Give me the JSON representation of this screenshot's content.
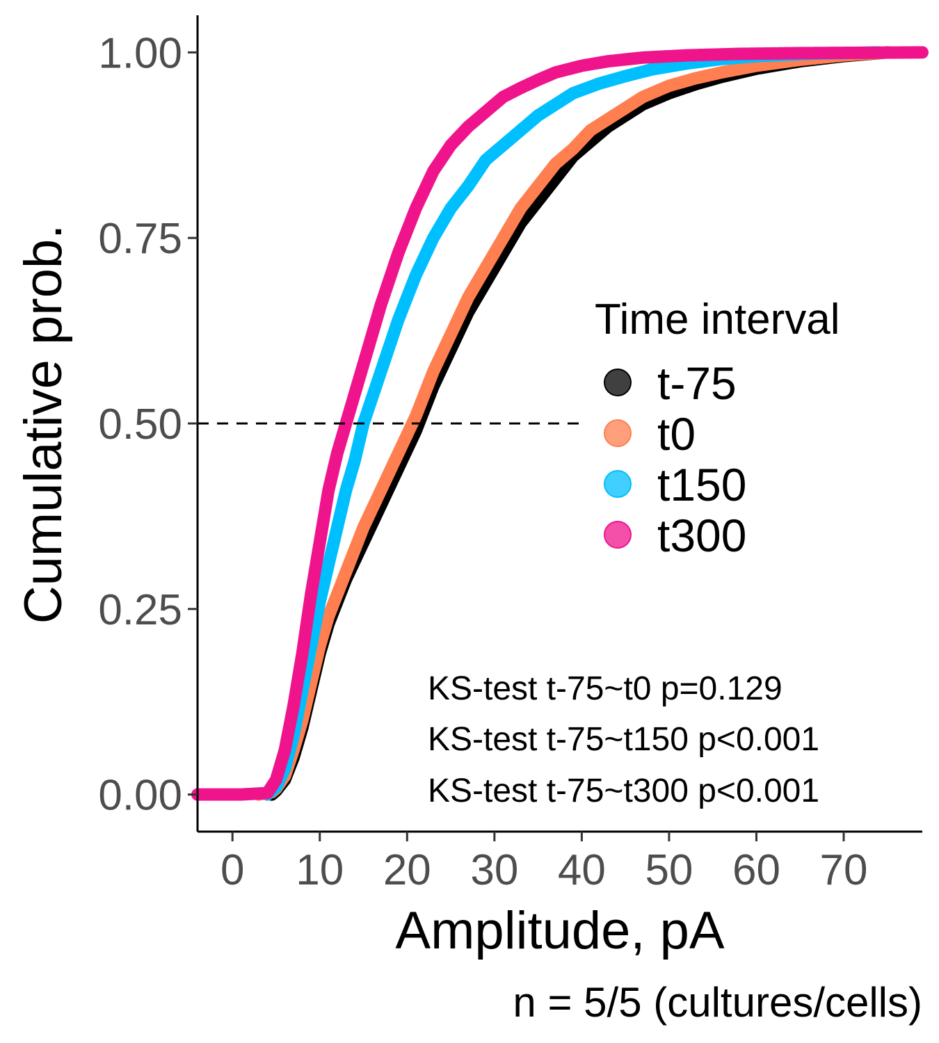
{
  "chart_data": {
    "type": "scatter",
    "subtype": "cumulative-distribution",
    "xlabel": "Amplitude, pA",
    "ylabel": "Cumulative prob.",
    "caption": "n = 5/5 (cultures/cells)",
    "xlim": [
      -4,
      79
    ],
    "ylim": [
      -0.05,
      1.05
    ],
    "x_ticks": [
      "0",
      "10",
      "20",
      "30",
      "40",
      "50",
      "60",
      "70"
    ],
    "x_tick_values": [
      0,
      10,
      20,
      30,
      40,
      50,
      60,
      70
    ],
    "y_ticks": [
      "0.00",
      "0.25",
      "0.50",
      "0.75",
      "1.00"
    ],
    "y_tick_values": [
      0,
      0.25,
      0.5,
      0.75,
      1.0
    ],
    "reference_line": {
      "y": 0.5,
      "x_from": -4,
      "x_to": 40,
      "style": "dashed"
    },
    "legend": {
      "title": "Time interval",
      "position": "right"
    },
    "annotations": [
      "KS-test t-75~t0 p=0.129",
      "KS-test t-75~t150 p<0.001",
      "KS-test t-75~t300 p<0.001"
    ],
    "series": [
      {
        "name": "t-75",
        "color": "#000000",
        "points": [
          [
            4.5,
            0
          ],
          [
            5,
            0.005
          ],
          [
            6,
            0.02
          ],
          [
            7,
            0.05
          ],
          [
            8,
            0.09
          ],
          [
            9,
            0.14
          ],
          [
            10,
            0.19
          ],
          [
            11,
            0.23
          ],
          [
            12,
            0.26
          ],
          [
            13,
            0.29
          ],
          [
            15,
            0.34
          ],
          [
            17,
            0.39
          ],
          [
            19,
            0.44
          ],
          [
            21,
            0.49
          ],
          [
            23,
            0.55
          ],
          [
            25,
            0.6
          ],
          [
            27,
            0.65
          ],
          [
            29,
            0.69
          ],
          [
            31,
            0.73
          ],
          [
            33,
            0.77
          ],
          [
            35,
            0.8
          ],
          [
            37,
            0.83
          ],
          [
            39,
            0.86
          ],
          [
            41,
            0.88
          ],
          [
            43,
            0.9
          ],
          [
            45,
            0.915
          ],
          [
            47,
            0.93
          ],
          [
            50,
            0.945
          ],
          [
            53,
            0.957
          ],
          [
            56,
            0.967
          ],
          [
            60,
            0.978
          ],
          [
            65,
            0.988
          ],
          [
            70,
            0.995
          ],
          [
            75,
            1.0
          ]
        ]
      },
      {
        "name": "t0",
        "color": "#ff7f50",
        "points": [
          [
            3,
            0
          ],
          [
            4.5,
            0.003
          ],
          [
            5,
            0.008
          ],
          [
            6,
            0.025
          ],
          [
            7,
            0.06
          ],
          [
            8,
            0.1
          ],
          [
            9,
            0.15
          ],
          [
            10,
            0.2
          ],
          [
            11,
            0.24
          ],
          [
            12,
            0.27
          ],
          [
            13,
            0.3
          ],
          [
            15,
            0.36
          ],
          [
            17,
            0.41
          ],
          [
            19,
            0.46
          ],
          [
            21,
            0.51
          ],
          [
            23,
            0.57
          ],
          [
            25,
            0.62
          ],
          [
            27,
            0.67
          ],
          [
            29,
            0.71
          ],
          [
            31,
            0.75
          ],
          [
            33,
            0.79
          ],
          [
            35,
            0.82
          ],
          [
            37,
            0.85
          ],
          [
            39,
            0.87
          ],
          [
            41,
            0.895
          ],
          [
            43,
            0.91
          ],
          [
            45,
            0.925
          ],
          [
            47,
            0.94
          ],
          [
            50,
            0.955
          ],
          [
            53,
            0.965
          ],
          [
            56,
            0.973
          ],
          [
            60,
            0.982
          ],
          [
            65,
            0.99
          ],
          [
            70,
            0.996
          ],
          [
            75,
            1.0
          ]
        ]
      },
      {
        "name": "t150",
        "color": "#00bfff",
        "points": [
          [
            4,
            0
          ],
          [
            5,
            0.01
          ],
          [
            6,
            0.035
          ],
          [
            7,
            0.08
          ],
          [
            8,
            0.14
          ],
          [
            9,
            0.2
          ],
          [
            10,
            0.26
          ],
          [
            11,
            0.31
          ],
          [
            12,
            0.36
          ],
          [
            13,
            0.41
          ],
          [
            14,
            0.45
          ],
          [
            15,
            0.5
          ],
          [
            17,
            0.57
          ],
          [
            19,
            0.64
          ],
          [
            21,
            0.7
          ],
          [
            23,
            0.75
          ],
          [
            25,
            0.79
          ],
          [
            27,
            0.82
          ],
          [
            29,
            0.855
          ],
          [
            31,
            0.875
          ],
          [
            33,
            0.895
          ],
          [
            35,
            0.915
          ],
          [
            37,
            0.93
          ],
          [
            39,
            0.945
          ],
          [
            42,
            0.958
          ],
          [
            45,
            0.968
          ],
          [
            48,
            0.977
          ],
          [
            52,
            0.985
          ],
          [
            56,
            0.991
          ],
          [
            60,
            0.995
          ],
          [
            66,
            0.998
          ],
          [
            74,
            1.0
          ]
        ]
      },
      {
        "name": "t300",
        "color": "#f0148c",
        "points": [
          [
            -4,
            0
          ],
          [
            1,
            0
          ],
          [
            4,
            0.002
          ],
          [
            5,
            0.02
          ],
          [
            6,
            0.06
          ],
          [
            7,
            0.12
          ],
          [
            8,
            0.19
          ],
          [
            9,
            0.27
          ],
          [
            10,
            0.34
          ],
          [
            11,
            0.41
          ],
          [
            12,
            0.46
          ],
          [
            13,
            0.5
          ],
          [
            14,
            0.54
          ],
          [
            15,
            0.58
          ],
          [
            17,
            0.66
          ],
          [
            19,
            0.73
          ],
          [
            21,
            0.79
          ],
          [
            23,
            0.84
          ],
          [
            25,
            0.875
          ],
          [
            27,
            0.9
          ],
          [
            29,
            0.92
          ],
          [
            31,
            0.94
          ],
          [
            33,
            0.952
          ],
          [
            35,
            0.963
          ],
          [
            37,
            0.973
          ],
          [
            40,
            0.982
          ],
          [
            43,
            0.988
          ],
          [
            47,
            0.993
          ],
          [
            52,
            0.996
          ],
          [
            58,
            0.998
          ],
          [
            65,
            0.999
          ],
          [
            79,
            1.0
          ]
        ]
      }
    ]
  }
}
